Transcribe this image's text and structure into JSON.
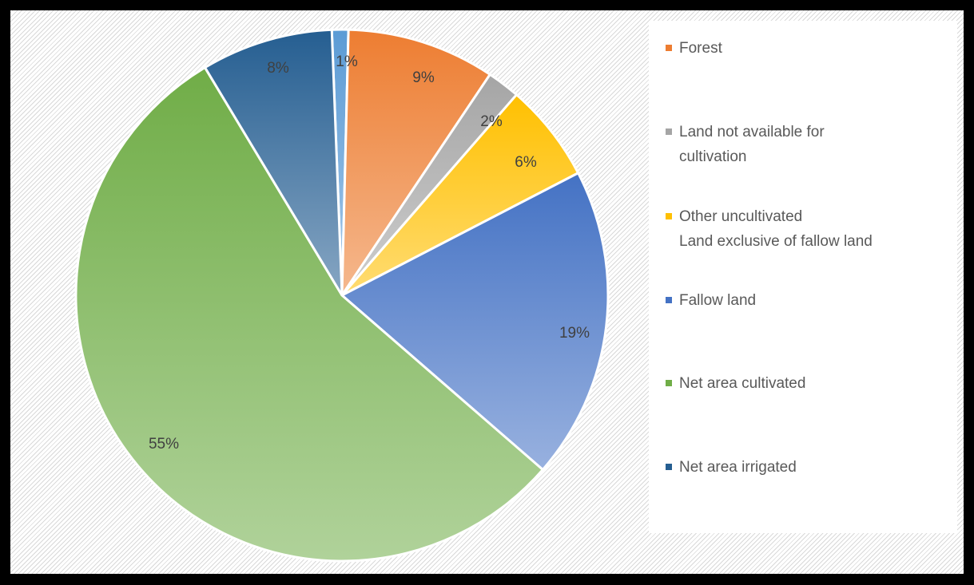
{
  "chart_data": {
    "type": "pie",
    "title": "",
    "slices": [
      {
        "name": "Net area irrigated",
        "value": 1,
        "label": "1%",
        "color": "#5b9bd5",
        "legend": false
      },
      {
        "name": "Forest",
        "value": 9,
        "label": "9%",
        "color": "#ed7d31",
        "legend": true
      },
      {
        "name": "Land not available for cultivation",
        "value": 2,
        "label": "2%",
        "color": "#a5a5a5",
        "legend": true
      },
      {
        "name": "Other uncultivated Land exclusive of fallow land",
        "value": 6,
        "label": "6%",
        "color": "#ffc000",
        "legend": true
      },
      {
        "name": "Fallow land",
        "value": 19,
        "label": "19%",
        "color": "#4472c4",
        "legend": true
      },
      {
        "name": "Net area cultivated",
        "value": 55,
        "label": "55%",
        "color": "#70ad47",
        "legend": true
      },
      {
        "name": "Net area irrigated",
        "value": 8,
        "label": "8%",
        "color": "#255e91",
        "legend": true
      }
    ],
    "legend": {
      "position": "right",
      "items": [
        {
          "text": "Forest",
          "color": "#ed7d31"
        },
        {
          "text": "Land not available for\ncultivation",
          "color": "#a5a5a5"
        },
        {
          "text": "Other uncultivated\nLand exclusive of fallow land",
          "color": "#ffc000"
        },
        {
          "text": "Fallow land",
          "color": "#4472c4"
        },
        {
          "text": "Net area cultivated",
          "color": "#70ad47"
        },
        {
          "text": "Net area irrigated",
          "color": "#255e91"
        }
      ]
    }
  }
}
